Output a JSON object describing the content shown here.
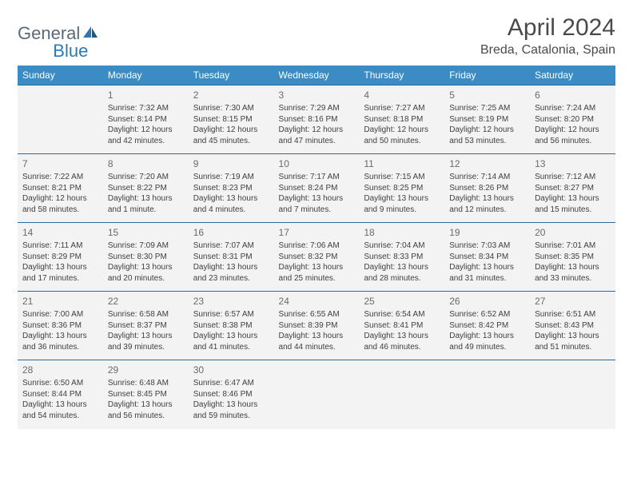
{
  "brand": {
    "word1": "General",
    "word2": "Blue"
  },
  "colors": {
    "header_bg": "#3b8bc4",
    "header_text": "#ffffff",
    "row_border": "#2a6a9a",
    "cell_bg": "#f3f3f3",
    "empty_bg": "#f9f9f9",
    "daynum_color": "#6a6a6a",
    "text_color": "#404040",
    "logo_gray": "#5a6a7a",
    "logo_blue": "#2a7ab8"
  },
  "title": "April 2024",
  "subtitle": "Breda, Catalonia, Spain",
  "day_headers": [
    "Sunday",
    "Monday",
    "Tuesday",
    "Wednesday",
    "Thursday",
    "Friday",
    "Saturday"
  ],
  "weeks": [
    [
      null,
      {
        "n": "1",
        "sr": "Sunrise: 7:32 AM",
        "ss": "Sunset: 8:14 PM",
        "d1": "Daylight: 12 hours",
        "d2": "and 42 minutes."
      },
      {
        "n": "2",
        "sr": "Sunrise: 7:30 AM",
        "ss": "Sunset: 8:15 PM",
        "d1": "Daylight: 12 hours",
        "d2": "and 45 minutes."
      },
      {
        "n": "3",
        "sr": "Sunrise: 7:29 AM",
        "ss": "Sunset: 8:16 PM",
        "d1": "Daylight: 12 hours",
        "d2": "and 47 minutes."
      },
      {
        "n": "4",
        "sr": "Sunrise: 7:27 AM",
        "ss": "Sunset: 8:18 PM",
        "d1": "Daylight: 12 hours",
        "d2": "and 50 minutes."
      },
      {
        "n": "5",
        "sr": "Sunrise: 7:25 AM",
        "ss": "Sunset: 8:19 PM",
        "d1": "Daylight: 12 hours",
        "d2": "and 53 minutes."
      },
      {
        "n": "6",
        "sr": "Sunrise: 7:24 AM",
        "ss": "Sunset: 8:20 PM",
        "d1": "Daylight: 12 hours",
        "d2": "and 56 minutes."
      }
    ],
    [
      {
        "n": "7",
        "sr": "Sunrise: 7:22 AM",
        "ss": "Sunset: 8:21 PM",
        "d1": "Daylight: 12 hours",
        "d2": "and 58 minutes."
      },
      {
        "n": "8",
        "sr": "Sunrise: 7:20 AM",
        "ss": "Sunset: 8:22 PM",
        "d1": "Daylight: 13 hours",
        "d2": "and 1 minute."
      },
      {
        "n": "9",
        "sr": "Sunrise: 7:19 AM",
        "ss": "Sunset: 8:23 PM",
        "d1": "Daylight: 13 hours",
        "d2": "and 4 minutes."
      },
      {
        "n": "10",
        "sr": "Sunrise: 7:17 AM",
        "ss": "Sunset: 8:24 PM",
        "d1": "Daylight: 13 hours",
        "d2": "and 7 minutes."
      },
      {
        "n": "11",
        "sr": "Sunrise: 7:15 AM",
        "ss": "Sunset: 8:25 PM",
        "d1": "Daylight: 13 hours",
        "d2": "and 9 minutes."
      },
      {
        "n": "12",
        "sr": "Sunrise: 7:14 AM",
        "ss": "Sunset: 8:26 PM",
        "d1": "Daylight: 13 hours",
        "d2": "and 12 minutes."
      },
      {
        "n": "13",
        "sr": "Sunrise: 7:12 AM",
        "ss": "Sunset: 8:27 PM",
        "d1": "Daylight: 13 hours",
        "d2": "and 15 minutes."
      }
    ],
    [
      {
        "n": "14",
        "sr": "Sunrise: 7:11 AM",
        "ss": "Sunset: 8:29 PM",
        "d1": "Daylight: 13 hours",
        "d2": "and 17 minutes."
      },
      {
        "n": "15",
        "sr": "Sunrise: 7:09 AM",
        "ss": "Sunset: 8:30 PM",
        "d1": "Daylight: 13 hours",
        "d2": "and 20 minutes."
      },
      {
        "n": "16",
        "sr": "Sunrise: 7:07 AM",
        "ss": "Sunset: 8:31 PM",
        "d1": "Daylight: 13 hours",
        "d2": "and 23 minutes."
      },
      {
        "n": "17",
        "sr": "Sunrise: 7:06 AM",
        "ss": "Sunset: 8:32 PM",
        "d1": "Daylight: 13 hours",
        "d2": "and 25 minutes."
      },
      {
        "n": "18",
        "sr": "Sunrise: 7:04 AM",
        "ss": "Sunset: 8:33 PM",
        "d1": "Daylight: 13 hours",
        "d2": "and 28 minutes."
      },
      {
        "n": "19",
        "sr": "Sunrise: 7:03 AM",
        "ss": "Sunset: 8:34 PM",
        "d1": "Daylight: 13 hours",
        "d2": "and 31 minutes."
      },
      {
        "n": "20",
        "sr": "Sunrise: 7:01 AM",
        "ss": "Sunset: 8:35 PM",
        "d1": "Daylight: 13 hours",
        "d2": "and 33 minutes."
      }
    ],
    [
      {
        "n": "21",
        "sr": "Sunrise: 7:00 AM",
        "ss": "Sunset: 8:36 PM",
        "d1": "Daylight: 13 hours",
        "d2": "and 36 minutes."
      },
      {
        "n": "22",
        "sr": "Sunrise: 6:58 AM",
        "ss": "Sunset: 8:37 PM",
        "d1": "Daylight: 13 hours",
        "d2": "and 39 minutes."
      },
      {
        "n": "23",
        "sr": "Sunrise: 6:57 AM",
        "ss": "Sunset: 8:38 PM",
        "d1": "Daylight: 13 hours",
        "d2": "and 41 minutes."
      },
      {
        "n": "24",
        "sr": "Sunrise: 6:55 AM",
        "ss": "Sunset: 8:39 PM",
        "d1": "Daylight: 13 hours",
        "d2": "and 44 minutes."
      },
      {
        "n": "25",
        "sr": "Sunrise: 6:54 AM",
        "ss": "Sunset: 8:41 PM",
        "d1": "Daylight: 13 hours",
        "d2": "and 46 minutes."
      },
      {
        "n": "26",
        "sr": "Sunrise: 6:52 AM",
        "ss": "Sunset: 8:42 PM",
        "d1": "Daylight: 13 hours",
        "d2": "and 49 minutes."
      },
      {
        "n": "27",
        "sr": "Sunrise: 6:51 AM",
        "ss": "Sunset: 8:43 PM",
        "d1": "Daylight: 13 hours",
        "d2": "and 51 minutes."
      }
    ],
    [
      {
        "n": "28",
        "sr": "Sunrise: 6:50 AM",
        "ss": "Sunset: 8:44 PM",
        "d1": "Daylight: 13 hours",
        "d2": "and 54 minutes."
      },
      {
        "n": "29",
        "sr": "Sunrise: 6:48 AM",
        "ss": "Sunset: 8:45 PM",
        "d1": "Daylight: 13 hours",
        "d2": "and 56 minutes."
      },
      {
        "n": "30",
        "sr": "Sunrise: 6:47 AM",
        "ss": "Sunset: 8:46 PM",
        "d1": "Daylight: 13 hours",
        "d2": "and 59 minutes."
      },
      null,
      null,
      null,
      null
    ]
  ]
}
